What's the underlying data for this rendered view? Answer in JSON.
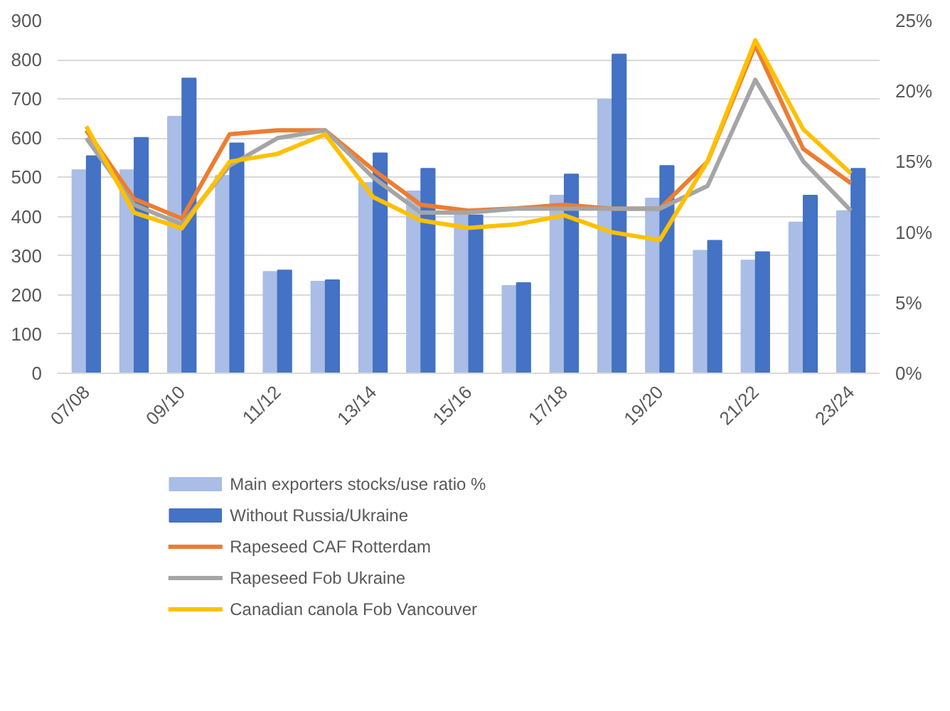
{
  "chart_data": {
    "type": "bar",
    "categories": [
      "07/08",
      null,
      "09/10",
      null,
      "11/12",
      null,
      "13/14",
      null,
      "15/16",
      null,
      "17/18",
      null,
      "19/20",
      null,
      "21/22",
      null,
      "23/24"
    ],
    "series": [
      {
        "name": "Main exporters stocks/use ratio %",
        "color": "#a9bde6",
        "axis": "y2",
        "values": [
          14.4,
          14.4,
          18.2,
          14.0,
          7.2,
          6.5,
          13.5,
          12.9,
          11.2,
          6.2,
          12.6,
          19.4,
          12.4,
          8.7,
          8.0,
          10.7,
          11.5
        ]
      },
      {
        "name": "Without Russia/Ukraine",
        "color": "#4472c4",
        "axis": "y2",
        "values": [
          15.4,
          16.7,
          20.9,
          16.3,
          7.3,
          6.6,
          15.6,
          14.5,
          11.2,
          6.4,
          14.1,
          22.6,
          14.7,
          9.4,
          8.6,
          12.6,
          14.5
        ]
      },
      {
        "name": "Rapeseed CAF Rotterdam",
        "type": "line",
        "color": "#ed7d31",
        "values": [
          620,
          445,
          395,
          610,
          620,
          620,
          520,
          430,
          415,
          421,
          430,
          420,
          420,
          540,
          837,
          573,
          485
        ]
      },
      {
        "name": "Rapeseed Fob Ukraine",
        "type": "line",
        "color": "#a5a5a5",
        "values": [
          600,
          430,
          380,
          530,
          600,
          620,
          500,
          410,
          410,
          420,
          420,
          420,
          420,
          478,
          749,
          541,
          415
        ]
      },
      {
        "name": "Canadian canola Fob Vancouver",
        "type": "line",
        "color": "#ffc000",
        "values": [
          630,
          410,
          370,
          540,
          560,
          610,
          450,
          390,
          371,
          380,
          403,
          360,
          340,
          541,
          850,
          623,
          510
        ]
      }
    ],
    "ylim": [
      0,
      900
    ],
    "yticks": [
      0,
      100,
      200,
      300,
      400,
      500,
      600,
      700,
      800,
      900
    ],
    "y2lim": [
      0,
      25
    ],
    "y2ticks": [
      {
        "value": 0,
        "label": "0%"
      },
      {
        "value": 5,
        "label": "5%"
      },
      {
        "value": 10,
        "label": "10%"
      },
      {
        "value": 15,
        "label": "15%"
      },
      {
        "value": 20,
        "label": "20%"
      },
      {
        "value": 25,
        "label": "25%"
      }
    ],
    "grid": "y",
    "legend": "bottom",
    "line_style": "solid"
  }
}
